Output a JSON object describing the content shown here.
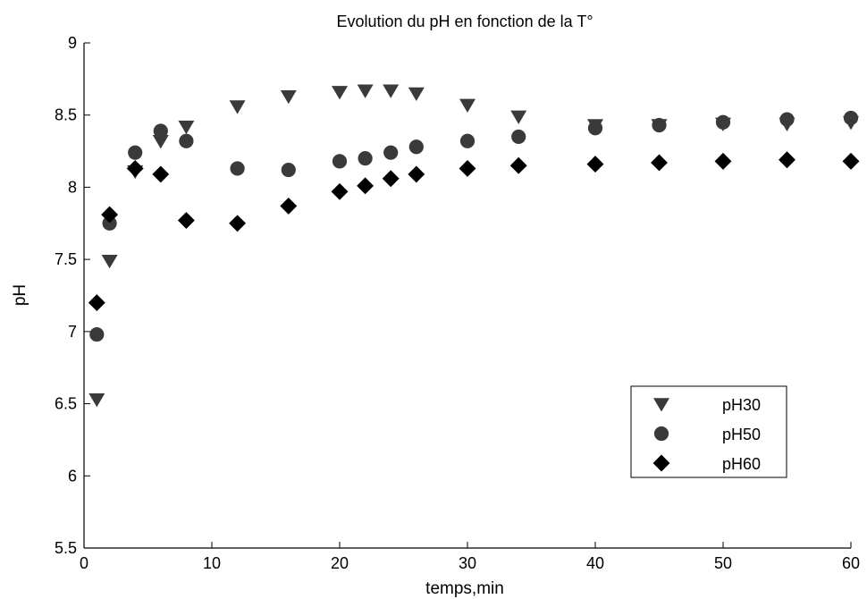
{
  "chart_data": {
    "type": "scatter",
    "title": "Evolution du pH en fonction de la T°",
    "xlabel": "temps,min",
    "ylabel": "pH",
    "xlim": [
      0,
      60
    ],
    "ylim": [
      5.5,
      9
    ],
    "xticks": [
      0,
      10,
      20,
      30,
      40,
      50,
      60
    ],
    "yticks": [
      5.5,
      6,
      6.5,
      7,
      7.5,
      8,
      8.5,
      9
    ],
    "grid": false,
    "legend_position": "bottom-right",
    "series": [
      {
        "name": "pH30",
        "marker": "triangle-down",
        "color": "#3a3a3a",
        "x": [
          1,
          2,
          4,
          6,
          8,
          12,
          16,
          20,
          22,
          24,
          26,
          30,
          34,
          40,
          45,
          50,
          55,
          60
        ],
        "y": [
          6.53,
          7.49,
          8.11,
          8.32,
          8.42,
          8.56,
          8.63,
          8.66,
          8.67,
          8.67,
          8.65,
          8.57,
          8.49,
          8.43,
          8.43,
          8.44,
          8.44,
          8.45
        ]
      },
      {
        "name": "pH50",
        "marker": "circle",
        "color": "#3a3a3a",
        "x": [
          1,
          2,
          4,
          6,
          8,
          12,
          16,
          20,
          22,
          24,
          26,
          30,
          34,
          40,
          45,
          50,
          55,
          60
        ],
        "y": [
          6.98,
          7.75,
          8.24,
          8.39,
          8.32,
          8.13,
          8.12,
          8.18,
          8.2,
          8.24,
          8.28,
          8.32,
          8.35,
          8.41,
          8.43,
          8.45,
          8.47,
          8.48
        ]
      },
      {
        "name": "pH60",
        "marker": "diamond",
        "color": "#000000",
        "x": [
          1,
          2,
          4,
          6,
          8,
          12,
          16,
          20,
          22,
          24,
          26,
          30,
          34,
          40,
          45,
          50,
          55,
          60
        ],
        "y": [
          7.2,
          7.81,
          8.13,
          8.09,
          7.77,
          7.75,
          7.87,
          7.97,
          8.01,
          8.06,
          8.09,
          8.13,
          8.15,
          8.16,
          8.17,
          8.18,
          8.19,
          8.18
        ]
      }
    ]
  }
}
